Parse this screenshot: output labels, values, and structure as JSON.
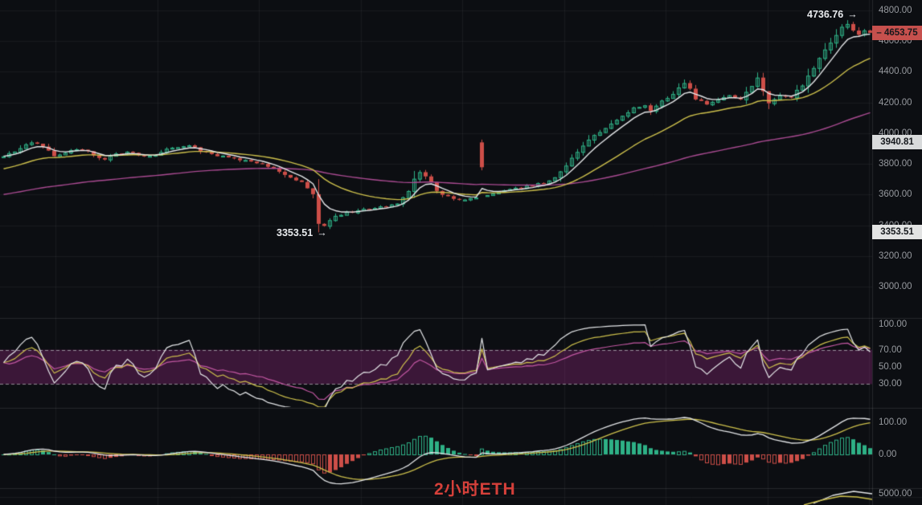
{
  "meta": {
    "instrument": "ETH",
    "timeframe": "2小时"
  },
  "colors": {
    "background": "#0c0e12",
    "grid": "rgba(255,255,255,0.055)",
    "separator": "rgba(255,255,255,0.11)",
    "axis_text": "#96999e",
    "up_candle": "#2eb186",
    "down_candle": "#cd4e48",
    "ma_fast": "#e4e6e8",
    "ma_mid": "#cdc04c",
    "ma_slow": "#aa4b92",
    "rsi_fast": "#e4e6e8",
    "rsi_mid": "#cdc04c",
    "rsi_slow": "#c257a2",
    "rsi_band_fill": "rgba(152,40,132,0.34)",
    "rsi_band_dash": "rgba(216,216,222,0.6)",
    "macd_dif": "#e4e6e8",
    "macd_dea": "#cdc04c",
    "last_badge_bg": "#c6504d",
    "ref_badge_bg": "#d8dadb",
    "badge_text": "#15181c",
    "callout_text": "#e9ebee",
    "footer_text": "#d5403a"
  },
  "axes": {
    "price_ticks": [
      "4800.00",
      "4600.00",
      "4400.00",
      "4200.00",
      "4000.00",
      "3800.00",
      "3600.00",
      "3400.00",
      "3200.00",
      "3000.00"
    ],
    "rsi_ticks": [
      "100.00",
      "70.00",
      "50.00",
      "30.00"
    ],
    "macd_ticks": [
      "100.00",
      "0.00"
    ],
    "volume_ticks": [
      "5000.00"
    ]
  },
  "badges": {
    "last_price_prefix": "–",
    "last_price": "4653.75",
    "ref_price": "3940.81",
    "low_price": "3353.51"
  },
  "callouts": {
    "high": {
      "text": "4736.76",
      "arrow": "→"
    },
    "low": {
      "text": "3353.51",
      "arrow": "→"
    }
  },
  "footer": {
    "label": "2小时ETH"
  },
  "chart_data": {
    "type": "candlestick",
    "title": "2小时ETH",
    "instrument": "ETH",
    "timeframe": "2h",
    "last_price": 4653.75,
    "session_high": 4736.76,
    "session_low": 3353.51,
    "reference_price": 3940.81,
    "price_axis_range": [
      2950,
      4868
    ],
    "candle_count": 155,
    "close_anchors": [
      [
        0,
        3848
      ],
      [
        2,
        3885
      ],
      [
        5,
        3945
      ],
      [
        7,
        3908
      ],
      [
        9,
        3852
      ],
      [
        12,
        3888
      ],
      [
        14,
        3896
      ],
      [
        16,
        3858
      ],
      [
        18,
        3832
      ],
      [
        20,
        3866
      ],
      [
        23,
        3876
      ],
      [
        25,
        3848
      ],
      [
        27,
        3860
      ],
      [
        29,
        3896
      ],
      [
        31,
        3912
      ],
      [
        33,
        3916
      ],
      [
        35,
        3888
      ],
      [
        37,
        3862
      ],
      [
        39,
        3848
      ],
      [
        41,
        3836
      ],
      [
        43,
        3824
      ],
      [
        45,
        3808
      ],
      [
        47,
        3778
      ],
      [
        49,
        3748
      ],
      [
        51,
        3715
      ],
      [
        53,
        3678
      ],
      [
        54,
        3645
      ],
      [
        55,
        3598
      ],
      [
        56,
        3415
      ],
      [
        57,
        3392
      ],
      [
        58,
        3432
      ],
      [
        59,
        3458
      ],
      [
        61,
        3482
      ],
      [
        64,
        3502
      ],
      [
        67,
        3518
      ],
      [
        70,
        3548
      ],
      [
        72,
        3628
      ],
      [
        73,
        3708
      ],
      [
        74,
        3748
      ],
      [
        75,
        3720
      ],
      [
        76,
        3678
      ],
      [
        77,
        3630
      ],
      [
        78,
        3598
      ],
      [
        80,
        3575
      ],
      [
        82,
        3568
      ],
      [
        84,
        3580
      ],
      [
        86,
        3602
      ],
      [
        88,
        3618
      ],
      [
        90,
        3636
      ],
      [
        92,
        3648
      ],
      [
        94,
        3662
      ],
      [
        96,
        3674
      ],
      [
        98,
        3706
      ],
      [
        100,
        3792
      ],
      [
        102,
        3882
      ],
      [
        104,
        3952
      ],
      [
        106,
        4012
      ],
      [
        108,
        4062
      ],
      [
        110,
        4116
      ],
      [
        112,
        4162
      ],
      [
        114,
        4186
      ],
      [
        115,
        4148
      ],
      [
        117,
        4206
      ],
      [
        119,
        4262
      ],
      [
        120,
        4302
      ],
      [
        121,
        4332
      ],
      [
        122,
        4288
      ],
      [
        123,
        4222
      ],
      [
        125,
        4186
      ],
      [
        127,
        4216
      ],
      [
        129,
        4242
      ],
      [
        131,
        4226
      ],
      [
        133,
        4302
      ],
      [
        134,
        4356
      ],
      [
        135,
        4268
      ],
      [
        136,
        4196
      ],
      [
        138,
        4242
      ],
      [
        140,
        4236
      ],
      [
        142,
        4316
      ],
      [
        144,
        4422
      ],
      [
        145,
        4492
      ],
      [
        146,
        4542
      ],
      [
        147,
        4596
      ],
      [
        148,
        4642
      ],
      [
        149,
        4692
      ],
      [
        150,
        4716
      ],
      [
        151,
        4672
      ],
      [
        152,
        4636
      ],
      [
        153,
        4668
      ],
      [
        154,
        4653.75
      ]
    ],
    "ma_seeds": {
      "fast": 3850,
      "mid": 3760,
      "slow": 3595
    },
    "indicators": {
      "ma_periods": [
        6,
        22,
        90
      ],
      "rsi_periods": [
        6,
        12,
        24
      ],
      "rsi_band": [
        30,
        70
      ],
      "macd_params": [
        12,
        26,
        9
      ]
    },
    "special_candles": {
      "low_index": 56,
      "high_index": 150,
      "outlier_index": 85,
      "outlier": {
        "open": 3940,
        "high": 3958,
        "low": 3758,
        "close": 3778
      }
    },
    "volume_ma_tail": {
      "yellow": [
        [
          1000,
          629
        ],
        [
          1022,
          623
        ],
        [
          1046,
          618
        ],
        [
          1066,
          619
        ],
        [
          1085,
          622
        ]
      ],
      "white": [
        [
          1012,
          627
        ],
        [
          1036,
          617
        ],
        [
          1062,
          612
        ],
        [
          1085,
          615
        ]
      ]
    }
  }
}
